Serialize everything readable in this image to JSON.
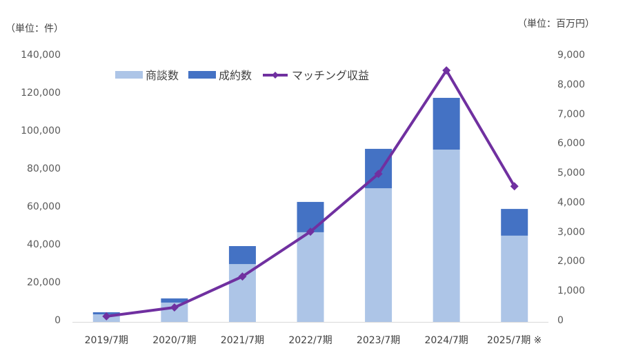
{
  "chart_data": {
    "type": "bar",
    "subtype": "stacked bar + line (dual axis)",
    "categories": [
      "2019/7期",
      "2020/7期",
      "2021/7期",
      "2022/7期",
      "2023/7期",
      "2024/7期",
      "2025/7期 ※"
    ],
    "series": [
      {
        "name": "商談数",
        "type": "bar",
        "axis": "left",
        "color": "#adc5e7",
        "values": [
          4000,
          10200,
          30500,
          47300,
          70500,
          90900,
          45500
        ]
      },
      {
        "name": "成約数",
        "type": "bar",
        "axis": "left",
        "color": "#4472c4",
        "values": [
          1100,
          2200,
          9500,
          16000,
          20800,
          27300,
          14100
        ]
      },
      {
        "name": "マッチング収益",
        "type": "line",
        "axis": "right",
        "color": "#7030a0",
        "marker": "diamond",
        "values": [
          190,
          490,
          1540,
          3060,
          5020,
          8530,
          4600
        ]
      }
    ],
    "title": "",
    "xlabel": "",
    "ylabel_left": "（単位：件）",
    "ylabel_right": "（単位：百万円）",
    "ylim_left": [
      0,
      140000
    ],
    "ylim_right": [
      0,
      9000
    ],
    "yticks_left": [
      "0",
      "20,000",
      "40,000",
      "60,000",
      "80,000",
      "100,000",
      "120,000",
      "140,000"
    ],
    "yticks_right": [
      "0",
      "1,000",
      "2,000",
      "3,000",
      "4,000",
      "5,000",
      "6,000",
      "7,000",
      "8,000",
      "9,000"
    ],
    "grid": false,
    "legend_position": "top"
  },
  "labels": {
    "unit_left": "（単位：件）",
    "unit_right": "（単位：百万円）"
  },
  "legend": {
    "items": [
      "商談数",
      "成約数",
      "マッチング収益"
    ]
  }
}
